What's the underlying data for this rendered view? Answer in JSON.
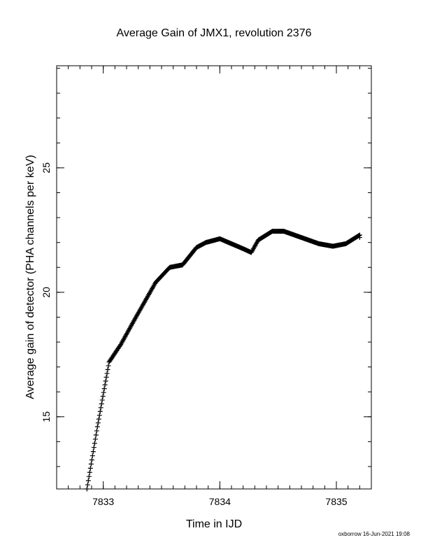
{
  "chart_data": {
    "type": "scatter",
    "marker": "plus",
    "title": "Average Gain of JMX1, revolution 2376",
    "xlabel": "Time in IJD",
    "ylabel": "Average gain of detector (PHA channels per keV)",
    "xlim": [
      7832.6,
      7835.3
    ],
    "ylim": [
      12.1,
      29.1
    ],
    "xticks_major": [
      7833,
      7834,
      7835
    ],
    "xtick_labels": [
      "7833",
      "7834",
      "7835"
    ],
    "yticks_major": [
      15,
      20,
      25
    ],
    "ytick_labels": [
      "15",
      "20",
      "25"
    ],
    "minor_tick_step": {
      "x": 0.1,
      "y": 1
    },
    "grid": false,
    "legend": "none",
    "color": "#000000",
    "series_keypoints": [
      [
        7832.86,
        12.1
      ],
      [
        7832.95,
        14.6
      ],
      [
        7833.05,
        17.2
      ],
      [
        7833.15,
        17.9
      ],
      [
        7833.28,
        19.0
      ],
      [
        7833.45,
        20.4
      ],
      [
        7833.57,
        21.0
      ],
      [
        7833.68,
        21.1
      ],
      [
        7833.8,
        21.8
      ],
      [
        7833.88,
        22.0
      ],
      [
        7834.0,
        22.15
      ],
      [
        7834.1,
        21.95
      ],
      [
        7834.2,
        21.75
      ],
      [
        7834.27,
        21.6
      ],
      [
        7834.33,
        22.1
      ],
      [
        7834.45,
        22.45
      ],
      [
        7834.55,
        22.45
      ],
      [
        7834.7,
        22.2
      ],
      [
        7834.85,
        21.95
      ],
      [
        7834.97,
        21.85
      ],
      [
        7835.08,
        21.95
      ],
      [
        7835.2,
        22.3
      ]
    ]
  },
  "footer": "oxborrow 16-Jun-2021 19:08"
}
